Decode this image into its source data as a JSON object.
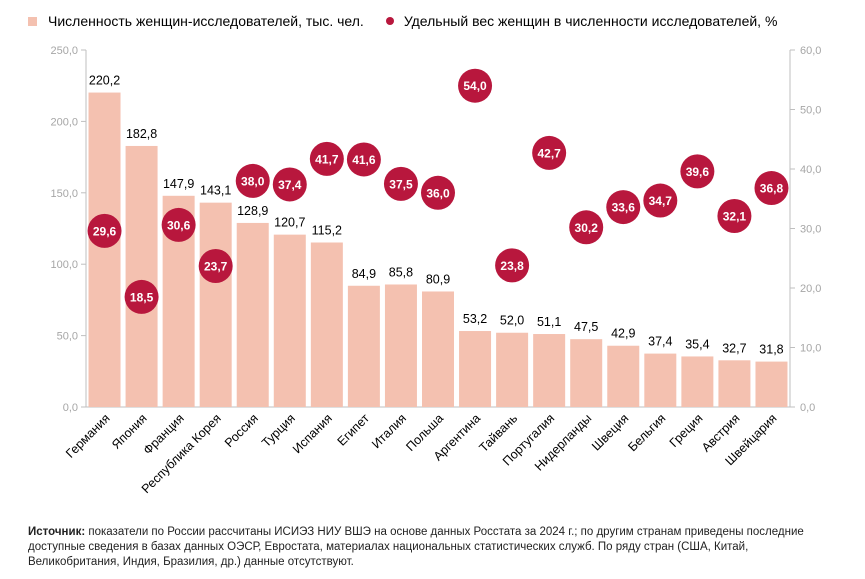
{
  "legend": {
    "bars_label": "Численность женщин-исследователей, тыс. чел.",
    "dots_label": "Удельный вес женщин в численности исследователей, %"
  },
  "colors": {
    "bar": "#f4c1b0",
    "dot": "#b8173d",
    "axis_text": "#a6a6a6"
  },
  "chart_data": {
    "type": "bar",
    "categories": [
      "Германия",
      "Япония",
      "Франция",
      "Республика Корея",
      "Россия",
      "Турция",
      "Испания",
      "Египет",
      "Италия",
      "Польша",
      "Аргентина",
      "Тайвань",
      "Португалия",
      "Нидерланды",
      "Швеция",
      "Бельгия",
      "Греция",
      "Австрия",
      "Швейцария"
    ],
    "series": [
      {
        "name": "Численность женщин-исследователей, тыс. чел.",
        "type": "bar",
        "axis": "left",
        "values": [
          220.2,
          182.8,
          147.9,
          143.1,
          128.9,
          120.7,
          115.2,
          84.9,
          85.8,
          80.9,
          53.2,
          52.0,
          51.1,
          47.5,
          42.9,
          37.4,
          35.4,
          32.7,
          31.8
        ]
      },
      {
        "name": "Удельный вес женщин в численности исследователей, %",
        "type": "scatter",
        "axis": "right",
        "values": [
          29.6,
          18.5,
          30.6,
          23.7,
          38.0,
          37.4,
          41.7,
          41.6,
          37.5,
          36.0,
          54.0,
          23.8,
          42.7,
          30.2,
          33.6,
          34.7,
          39.6,
          32.1,
          36.8
        ]
      }
    ],
    "bar_labels": [
      "220,2",
      "182,8",
      "147,9",
      "143,1",
      "128,9",
      "120,7",
      "115,2",
      "84,9",
      "85,8",
      "80,9",
      "53,2",
      "52,0",
      "51,1",
      "47,5",
      "42,9",
      "37,4",
      "35,4",
      "32,7",
      "31,8"
    ],
    "dot_labels": [
      "29,6",
      "18,5",
      "30,6",
      "23,7",
      "38,0",
      "37,4",
      "41,7",
      "41,6",
      "37,5",
      "36,0",
      "54,0",
      "23,8",
      "42,7",
      "30,2",
      "33,6",
      "34,7",
      "39,6",
      "32,1",
      "36,8"
    ],
    "y_left": {
      "range": [
        0,
        250
      ],
      "ticks": [
        "0,0",
        "50,0",
        "100,0",
        "150,0",
        "200,0",
        "250,0"
      ]
    },
    "y_right": {
      "range": [
        0,
        60
      ],
      "ticks": [
        "0,0",
        "10,0",
        "20,0",
        "30,0",
        "40,0",
        "50,0",
        "60,0"
      ]
    },
    "grid": false,
    "legend_position": "top"
  },
  "source": {
    "label": "Источник:",
    "text": " показатели по России рассчитаны ИСИЭЗ НИУ ВШЭ на основе данных Росстата за 2024 г.; по другим странам приведены последние доступные сведения в базах данных ОЭСР, Евростата, материалах национальных статистических служб. По ряду стран (США, Китай, Великобритания, Индия, Бразилия, др.) данные отсутствуют."
  }
}
